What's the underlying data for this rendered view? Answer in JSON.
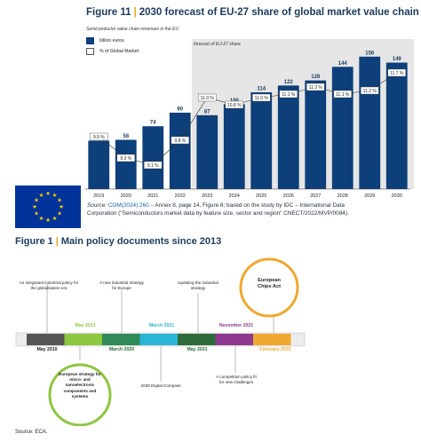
{
  "figure11": {
    "number": "Figure 11",
    "title": "2030 forecast of EU-27 share of global market value chain",
    "subcaption": "Semiconductor value chain revenues in the EU",
    "legend": {
      "bars": "billion euros",
      "line": "% of Global Market"
    },
    "forecast_label": "forecast of EU-27 share",
    "source_prefix": "Source:",
    "source_link": "COM(2024) 260",
    "source_rest_line1": " – Annex 8, page 14, Figure 8; based on the study by IDC – International Data",
    "source_line2": "Corporation (\"Semiconductors market data by feature size, sector and region\" CNECT/2022/MVP/0084).",
    "colors": {
      "bar": "#0d3f7a",
      "forecast_bg": "#e6e6e6",
      "title": "#1b3a5c",
      "accent": "#e8a317"
    },
    "eu_flag_icon": "eu-flag-icon"
  },
  "chart_data": {
    "type": "bar",
    "categories": [
      "2019",
      "2020",
      "2021",
      "2022",
      "2023",
      "2024",
      "2025",
      "2026",
      "2027",
      "2028",
      "2029",
      "2030"
    ],
    "series": [
      {
        "name": "billion euros",
        "values": [
          57,
          58,
          74,
          90,
          87,
          100,
          114,
          122,
          128,
          144,
          156,
          149
        ]
      },
      {
        "name": "% of Global Market",
        "values": [
          9.9,
          9.3,
          9.1,
          9.8,
          11.0,
          10.8,
          11.0,
          11.1,
          11.3,
          11.1,
          11.2,
          11.7
        ],
        "labels": [
          "9.9 %",
          "9.3 %",
          "9.1 %",
          "9.8 %",
          "11.0 %",
          "10.8 %",
          "11.0 %",
          "11.1 %",
          "11.3 %",
          "11.1 %",
          "11.2 %",
          "11.7 %"
        ]
      }
    ],
    "forecast_start": "2023",
    "ylim": [
      0,
      160
    ]
  },
  "figure1": {
    "number": "Figure 1",
    "title": "Main policy documents since 2013",
    "timeline": [
      {
        "date": "May 2010",
        "color": "#555555"
      },
      {
        "date": "May 2013",
        "color": "#8dc63f"
      },
      {
        "date": "March 2020",
        "color": "#2e8b57"
      },
      {
        "date": "March 2021",
        "color": "#29b6d6"
      },
      {
        "date": "May 2021",
        "color": "#2e6b3a"
      },
      {
        "date": "November 2021",
        "color": "#8e3a8e"
      },
      {
        "date": "February 2022",
        "color": "#f0a830"
      }
    ],
    "docs_above": [
      "An integrated industrial policy for the globalisation era",
      "A new industrial strategy for Europe",
      "Updating the industrial strategy",
      "European Chips Act"
    ],
    "docs_below": [
      "European strategy for micro- and nanoelectronic components and systems",
      "2030 Digital Compass",
      "A competition policy fit for new challenges"
    ],
    "source": "Source: ECA."
  }
}
